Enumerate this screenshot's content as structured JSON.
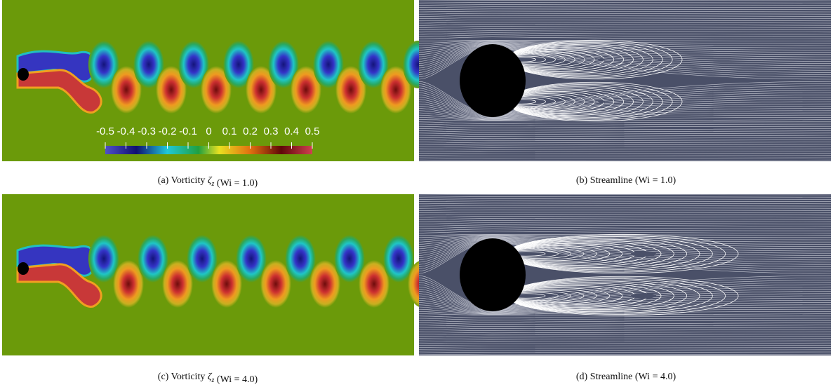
{
  "panels": [
    {
      "label": "(a)",
      "text": "Vorticity",
      "symbol": "ζ",
      "subscript": "z",
      "condition": "(Wi = 1.0)"
    },
    {
      "label": "(b)",
      "text": "Streamline",
      "condition": "(Wi = 1.0)"
    },
    {
      "label": "(c)",
      "text": "Vorticity",
      "symbol": "ζ",
      "subscript": "z",
      "condition": "(Wi = 4.0)"
    },
    {
      "label": "(d)",
      "text": "Streamline",
      "condition": "(Wi = 4.0)"
    }
  ],
  "colorbar": {
    "ticks": [
      -0.5,
      -0.4,
      -0.3,
      -0.2,
      -0.1,
      0,
      0.1,
      0.2,
      0.3,
      0.4,
      0.5
    ]
  }
}
